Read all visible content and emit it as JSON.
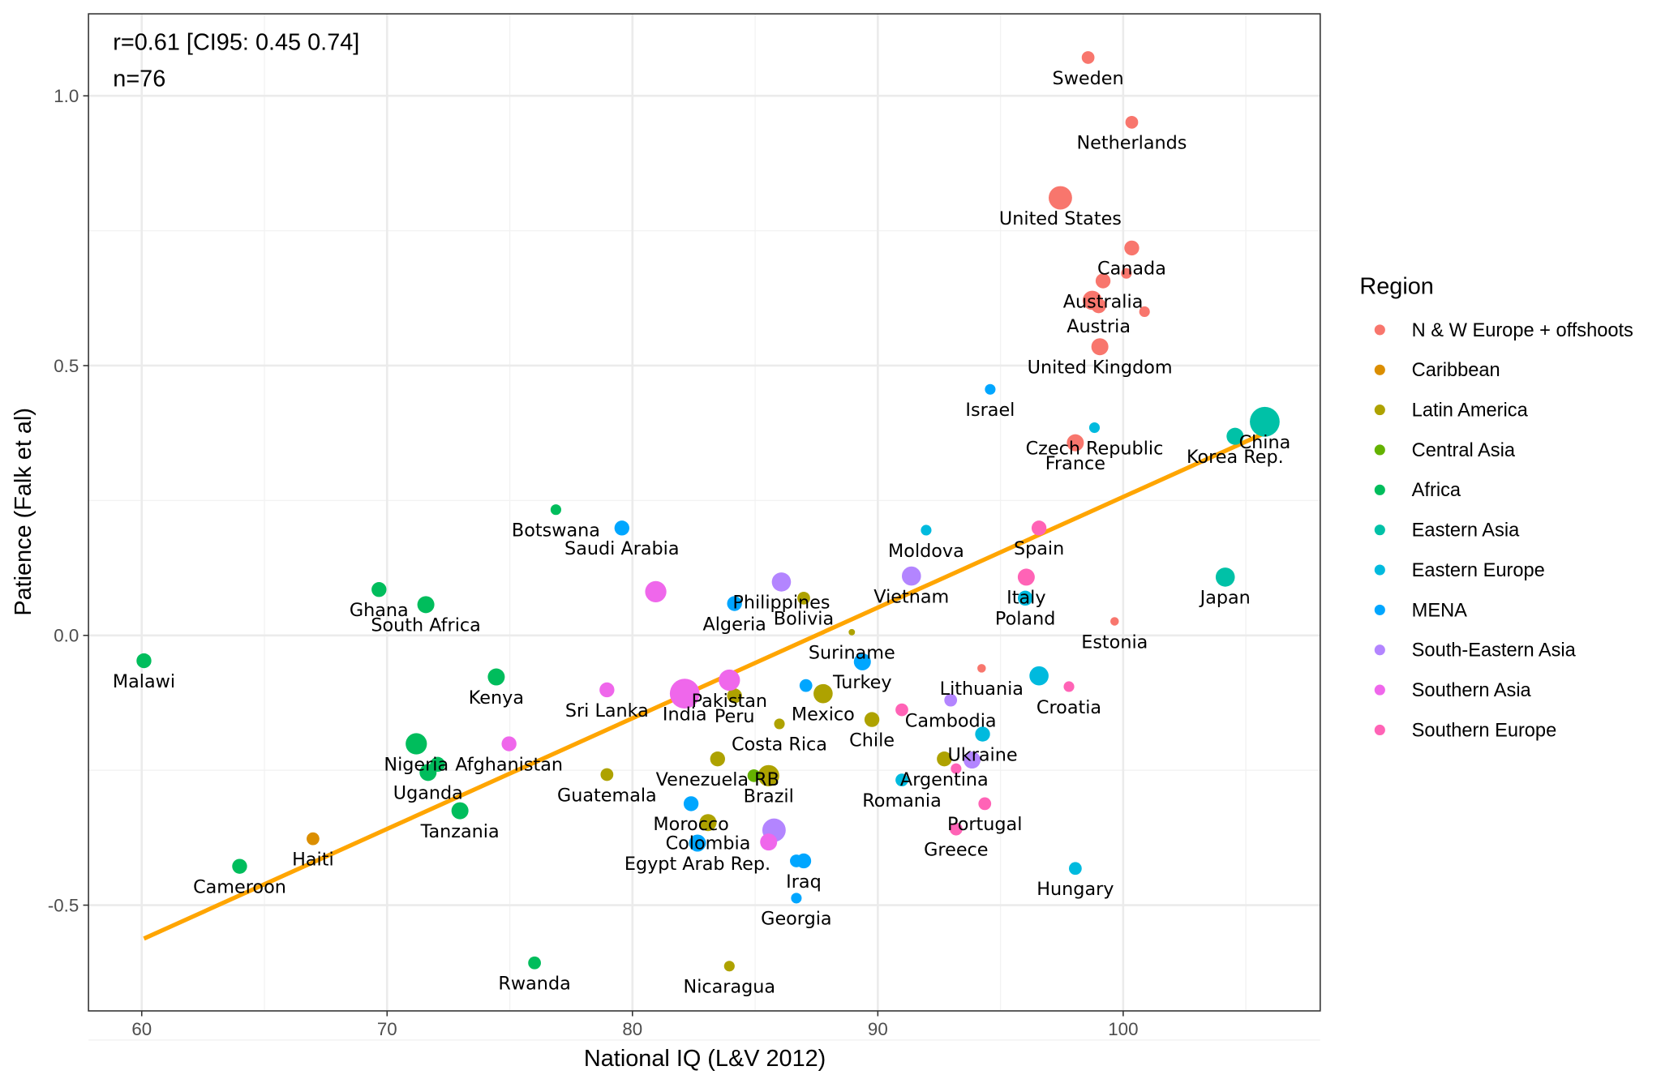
{
  "chart_data": {
    "type": "scatter",
    "xlabel": "National IQ (L&V 2012)",
    "ylabel": "Patience (Falk et al)",
    "xlim": [
      57.83,
      108.03
    ],
    "ylim": [
      -0.696,
      1.152
    ],
    "x_ticks": [
      60,
      70,
      80,
      90,
      100
    ],
    "x_tick_labels": [
      "60",
      "70",
      "80",
      "90",
      "100"
    ],
    "y_ticks": [
      -0.5,
      0.0,
      0.5,
      1.0
    ],
    "y_tick_labels": [
      "-0.5",
      "0.0",
      "0.5",
      "1.0"
    ],
    "grid": true,
    "annotations": [
      "r=0.61 [CI95: 0.45 0.74]",
      "n=76"
    ],
    "legend": {
      "title": "Region",
      "placement": "right",
      "entries": [
        {
          "name": "N & W Europe + offshoots",
          "color": "#F8766D"
        },
        {
          "name": "Caribbean",
          "color": "#DB8E00"
        },
        {
          "name": "Latin America",
          "color": "#AEA200"
        },
        {
          "name": "Central Asia",
          "color": "#64B200"
        },
        {
          "name": "Africa",
          "color": "#00BD5C"
        },
        {
          "name": "Eastern Asia",
          "color": "#00C1A7"
        },
        {
          "name": "Eastern Europe",
          "color": "#00BADE"
        },
        {
          "name": "MENA",
          "color": "#00A6FF"
        },
        {
          "name": "South-Eastern Asia",
          "color": "#B385FF"
        },
        {
          "name": "Southern Asia",
          "color": "#EF67EB"
        },
        {
          "name": "Southern Europe",
          "color": "#FF63B6"
        }
      ]
    },
    "regression_line": {
      "color": "#FFA500",
      "x": [
        60.09,
        105.77
      ],
      "y": [
        -0.562,
        0.375
      ]
    },
    "points": [
      {
        "label": "Sweden",
        "x": 98.57,
        "y": 1.071,
        "region": 0,
        "size": 6
      },
      {
        "label": "Netherlands",
        "x": 100.35,
        "y": 0.951,
        "region": 0,
        "size": 6
      },
      {
        "label": "United States",
        "x": 97.44,
        "y": 0.811,
        "region": 0,
        "size": 11
      },
      {
        "label": "Canada",
        "x": 100.35,
        "y": 0.718,
        "region": 0,
        "size": 7
      },
      {
        "label": "",
        "x": 100.13,
        "y": 0.671,
        "region": 0,
        "size": 5
      },
      {
        "label": "Australia",
        "x": 99.18,
        "y": 0.657,
        "region": 0,
        "size": 7
      },
      {
        "label": "",
        "x": 98.74,
        "y": 0.621,
        "region": 0,
        "size": 9
      },
      {
        "label": "Austria",
        "x": 99.0,
        "y": 0.611,
        "region": 0,
        "size": 7
      },
      {
        "label": "",
        "x": 100.87,
        "y": 0.6,
        "region": 0,
        "size": 5
      },
      {
        "label": "United Kingdom",
        "x": 99.05,
        "y": 0.535,
        "region": 0,
        "size": 8
      },
      {
        "label": "France",
        "x": 98.05,
        "y": 0.357,
        "region": 0,
        "size": 8
      },
      {
        "label": "Estonia",
        "x": 99.65,
        "y": 0.026,
        "region": 0,
        "size": 4
      },
      {
        "label": "Lithuania",
        "x": 94.23,
        "y": -0.061,
        "region": 0,
        "size": 4
      },
      {
        "label": "Haiti",
        "x": 66.98,
        "y": -0.377,
        "region": 1,
        "size": 6
      },
      {
        "label": "Bolivia",
        "x": 86.98,
        "y": 0.069,
        "region": 2,
        "size": 6
      },
      {
        "label": "Suriname",
        "x": 88.94,
        "y": 0.006,
        "region": 2,
        "size": 3
      },
      {
        "label": "Mexico",
        "x": 87.77,
        "y": -0.108,
        "region": 2,
        "size": 9
      },
      {
        "label": "Chile",
        "x": 89.76,
        "y": -0.156,
        "region": 2,
        "size": 7
      },
      {
        "label": "Costa Rica",
        "x": 85.99,
        "y": -0.164,
        "region": 2,
        "size": 5
      },
      {
        "label": "Guatemala",
        "x": 78.96,
        "y": -0.258,
        "region": 2,
        "size": 6
      },
      {
        "label": "Venezuela RB",
        "x": 83.47,
        "y": -0.229,
        "region": 2,
        "size": 7
      },
      {
        "label": "Brazil",
        "x": 85.55,
        "y": -0.26,
        "region": 2,
        "size": 10
      },
      {
        "label": "Argentina",
        "x": 92.71,
        "y": -0.229,
        "region": 2,
        "size": 7
      },
      {
        "label": "Nicaragua",
        "x": 83.95,
        "y": -0.613,
        "region": 2,
        "size": 5
      },
      {
        "label": "Peru",
        "x": 84.16,
        "y": -0.112,
        "region": 2,
        "size": 7
      },
      {
        "label": "Colombia",
        "x": 83.08,
        "y": -0.347,
        "region": 2,
        "size": 8
      },
      {
        "label": "",
        "x": 84.95,
        "y": -0.26,
        "region": 3,
        "size": 6
      },
      {
        "label": "Malawi",
        "x": 60.09,
        "y": -0.047,
        "region": 4,
        "size": 7
      },
      {
        "label": "Ghana",
        "x": 69.67,
        "y": 0.085,
        "region": 4,
        "size": 7
      },
      {
        "label": "South Africa",
        "x": 71.58,
        "y": 0.057,
        "region": 4,
        "size": 8
      },
      {
        "label": "Botswana",
        "x": 76.88,
        "y": 0.233,
        "region": 4,
        "size": 5
      },
      {
        "label": "Kenya",
        "x": 74.45,
        "y": -0.077,
        "region": 4,
        "size": 8
      },
      {
        "label": "Nigeria",
        "x": 71.19,
        "y": -0.201,
        "region": 4,
        "size": 10
      },
      {
        "label": "",
        "x": 72.06,
        "y": -0.239,
        "region": 4,
        "size": 7
      },
      {
        "label": "Uganda",
        "x": 71.67,
        "y": -0.254,
        "region": 4,
        "size": 8
      },
      {
        "label": "Tanzania",
        "x": 72.97,
        "y": -0.325,
        "region": 4,
        "size": 8
      },
      {
        "label": "Cameroon",
        "x": 63.99,
        "y": -0.428,
        "region": 4,
        "size": 7
      },
      {
        "label": "Rwanda",
        "x": 76.01,
        "y": -0.607,
        "region": 4,
        "size": 6
      },
      {
        "label": "China",
        "x": 105.77,
        "y": 0.396,
        "region": 5,
        "size": 14
      },
      {
        "label": "Korea Rep.",
        "x": 104.56,
        "y": 0.369,
        "region": 5,
        "size": 8
      },
      {
        "label": "Japan",
        "x": 104.16,
        "y": 0.108,
        "region": 5,
        "size": 9
      },
      {
        "label": "Czech Republic",
        "x": 98.83,
        "y": 0.385,
        "region": 6,
        "size": 5
      },
      {
        "label": "Moldova",
        "x": 91.97,
        "y": 0.195,
        "region": 6,
        "size": 5
      },
      {
        "label": "Poland",
        "x": 96.01,
        "y": 0.069,
        "region": 6,
        "size": 7
      },
      {
        "label": "",
        "x": 96.57,
        "y": -0.075,
        "region": 6,
        "size": 9
      },
      {
        "label": "Ukraine",
        "x": 94.27,
        "y": -0.183,
        "region": 6,
        "size": 7
      },
      {
        "label": "Romania",
        "x": 90.98,
        "y": -0.268,
        "region": 6,
        "size": 6
      },
      {
        "label": "Hungary",
        "x": 98.05,
        "y": -0.432,
        "region": 6,
        "size": 6
      },
      {
        "label": "Saudi Arabia",
        "x": 79.57,
        "y": 0.199,
        "region": 7,
        "size": 7
      },
      {
        "label": "Algeria",
        "x": 84.16,
        "y": 0.059,
        "region": 7,
        "size": 7
      },
      {
        "label": "Turkey",
        "x": 89.37,
        "y": -0.049,
        "region": 7,
        "size": 8
      },
      {
        "label": "Israel",
        "x": 94.58,
        "y": 0.456,
        "region": 7,
        "size": 5
      },
      {
        "label": "",
        "x": 87.07,
        "y": -0.093,
        "region": 7,
        "size": 6
      },
      {
        "label": "Morocco",
        "x": 82.39,
        "y": -0.312,
        "region": 7,
        "size": 7
      },
      {
        "label": "Egypt Arab Rep.",
        "x": 82.65,
        "y": -0.385,
        "region": 7,
        "size": 8
      },
      {
        "label": "",
        "x": 86.68,
        "y": -0.418,
        "region": 7,
        "size": 6
      },
      {
        "label": "Iraq",
        "x": 86.98,
        "y": -0.418,
        "region": 7,
        "size": 7
      },
      {
        "label": "Georgia",
        "x": 86.68,
        "y": -0.487,
        "region": 7,
        "size": 5
      },
      {
        "label": "Vietnam",
        "x": 91.37,
        "y": 0.11,
        "region": 8,
        "size": 9
      },
      {
        "label": "Philippines",
        "x": 86.07,
        "y": 0.099,
        "region": 8,
        "size": 9
      },
      {
        "label": "Cambodia",
        "x": 92.97,
        "y": -0.12,
        "region": 8,
        "size": 6
      },
      {
        "label": "",
        "x": 93.84,
        "y": -0.231,
        "region": 8,
        "size": 8
      },
      {
        "label": "",
        "x": 85.77,
        "y": -0.361,
        "region": 8,
        "size": 11
      },
      {
        "label": "",
        "x": 80.95,
        "y": 0.081,
        "region": 9,
        "size": 10
      },
      {
        "label": "Sri Lanka",
        "x": 78.96,
        "y": -0.101,
        "region": 9,
        "size": 7
      },
      {
        "label": "Afghanistan",
        "x": 74.97,
        "y": -0.201,
        "region": 9,
        "size": 7
      },
      {
        "label": "India",
        "x": 82.13,
        "y": -0.108,
        "region": 9,
        "size": 14
      },
      {
        "label": "Pakistan",
        "x": 83.95,
        "y": -0.083,
        "region": 9,
        "size": 10
      },
      {
        "label": "",
        "x": 85.55,
        "y": -0.383,
        "region": 9,
        "size": 8
      },
      {
        "label": "Spain",
        "x": 96.57,
        "y": 0.199,
        "region": 10,
        "size": 7
      },
      {
        "label": "Italy",
        "x": 96.05,
        "y": 0.108,
        "region": 10,
        "size": 8
      },
      {
        "label": "Croatia",
        "x": 97.79,
        "y": -0.095,
        "region": 10,
        "size": 5
      },
      {
        "label": "",
        "x": 90.98,
        "y": -0.138,
        "region": 10,
        "size": 6
      },
      {
        "label": "",
        "x": 93.19,
        "y": -0.247,
        "region": 10,
        "size": 5
      },
      {
        "label": "Portugal",
        "x": 94.36,
        "y": -0.312,
        "region": 10,
        "size": 6
      },
      {
        "label": "Greece",
        "x": 93.19,
        "y": -0.359,
        "region": 10,
        "size": 6
      }
    ]
  }
}
